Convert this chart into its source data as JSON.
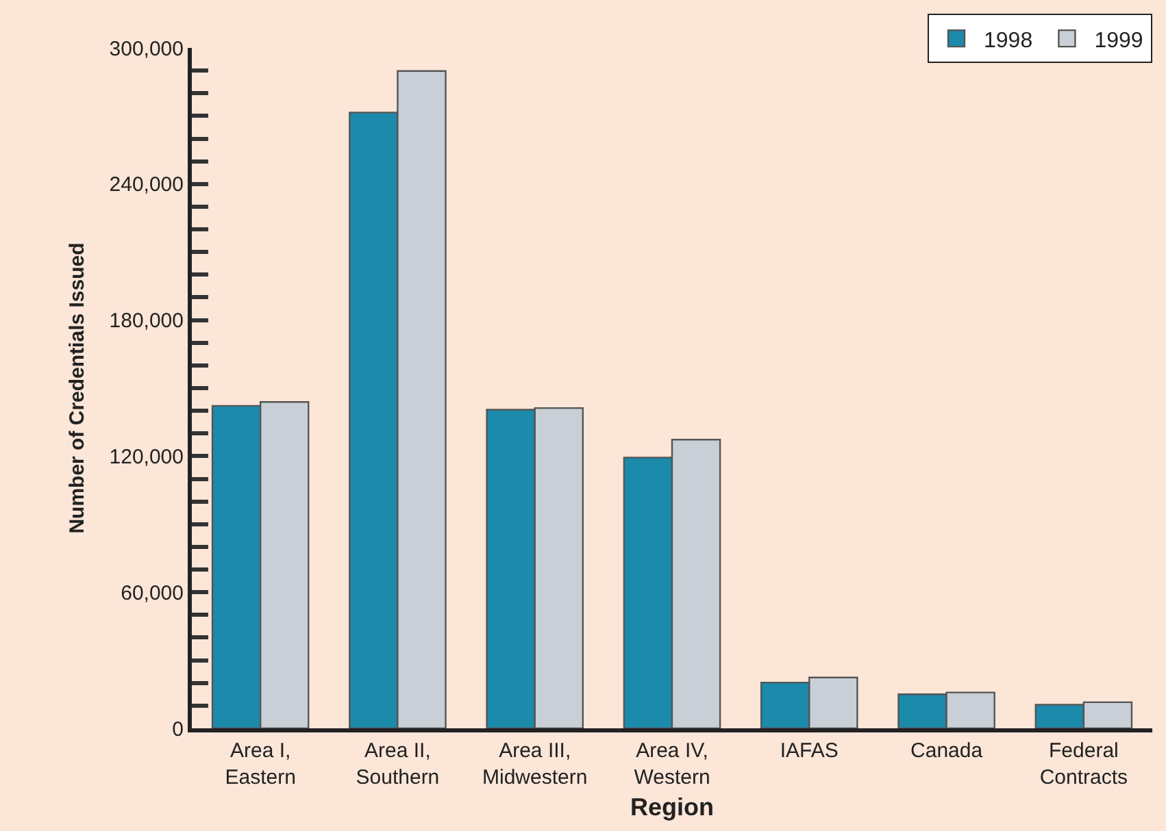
{
  "chart_data": {
    "type": "bar",
    "xlabel": "Region",
    "ylabel": "Number of Credentials Issued",
    "categories": [
      "Area I,\nEastern",
      "Area II,\nSouthern",
      "Area III,\nMidwestern",
      "Area IV,\nWestern",
      "IAFAS",
      "Canada",
      "Federal\nContracts"
    ],
    "series": [
      {
        "name": "1998",
        "color": "#1b8aab",
        "values": [
          142200,
          271500,
          140500,
          119400,
          20200,
          15000,
          10400
        ]
      },
      {
        "name": "1999",
        "color": "#c9cfd6",
        "values": [
          143900,
          289800,
          141200,
          127300,
          22400,
          15800,
          11500
        ]
      }
    ],
    "ylim": [
      0,
      300000
    ],
    "yticks": [
      {
        "value": 0,
        "label": "0"
      },
      {
        "value": 10000,
        "label": null
      },
      {
        "value": 20000,
        "label": null
      },
      {
        "value": 30000,
        "label": null
      },
      {
        "value": 40000,
        "label": null
      },
      {
        "value": 50000,
        "label": null
      },
      {
        "value": 60000,
        "label": "60,000"
      },
      {
        "value": 70000,
        "label": null
      },
      {
        "value": 80000,
        "label": null
      },
      {
        "value": 90000,
        "label": null
      },
      {
        "value": 100000,
        "label": null
      },
      {
        "value": 110000,
        "label": null
      },
      {
        "value": 120000,
        "label": "120,000"
      },
      {
        "value": 130000,
        "label": null
      },
      {
        "value": 140000,
        "label": null
      },
      {
        "value": 150000,
        "label": null
      },
      {
        "value": 160000,
        "label": null
      },
      {
        "value": 170000,
        "label": null
      },
      {
        "value": 180000,
        "label": "180,000"
      },
      {
        "value": 190000,
        "label": null
      },
      {
        "value": 200000,
        "label": null
      },
      {
        "value": 210000,
        "label": null
      },
      {
        "value": 220000,
        "label": null
      },
      {
        "value": 230000,
        "label": null
      },
      {
        "value": 240000,
        "label": "240,000"
      },
      {
        "value": 250000,
        "label": null
      },
      {
        "value": 260000,
        "label": null
      },
      {
        "value": 270000,
        "label": null
      },
      {
        "value": 280000,
        "label": null
      },
      {
        "value": 290000,
        "label": null
      },
      {
        "value": 300000,
        "label": "300,000"
      }
    ],
    "grid": false,
    "legend": "top right"
  }
}
